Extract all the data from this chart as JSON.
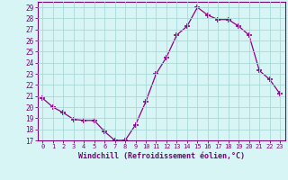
{
  "x": [
    0,
    1,
    2,
    3,
    4,
    5,
    6,
    7,
    8,
    9,
    10,
    11,
    12,
    13,
    14,
    15,
    16,
    17,
    18,
    19,
    20,
    21,
    22,
    23
  ],
  "y": [
    20.8,
    20.0,
    19.5,
    18.9,
    18.8,
    18.8,
    17.8,
    17.0,
    17.0,
    18.4,
    20.5,
    23.0,
    24.5,
    26.5,
    27.3,
    29.0,
    28.3,
    27.9,
    27.9,
    27.3,
    26.5,
    23.3,
    22.5,
    21.2
  ],
  "line_color": "#8B008B",
  "marker": "+",
  "marker_size": 4,
  "bg_color": "#d8f5f5",
  "grid_color": "#aad8d8",
  "xlabel": "Windchill (Refroidissement éolien,°C)",
  "xlim": [
    -0.5,
    23.5
  ],
  "ylim": [
    17,
    29.5
  ],
  "yticks": [
    17,
    18,
    19,
    20,
    21,
    22,
    23,
    24,
    25,
    26,
    27,
    28,
    29
  ],
  "xticks": [
    0,
    1,
    2,
    3,
    4,
    5,
    6,
    7,
    8,
    9,
    10,
    11,
    12,
    13,
    14,
    15,
    16,
    17,
    18,
    19,
    20,
    21,
    22,
    23
  ],
  "tick_color": "#7B007B",
  "label_color": "#7B007B"
}
